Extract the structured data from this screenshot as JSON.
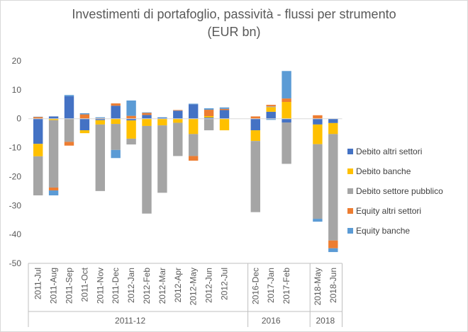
{
  "chart_data": {
    "type": "bar",
    "stacked": true,
    "title": "Investimenti di portafoglio, passività - flussi per strumento",
    "subtitle": "(EUR bn)",
    "xlabel": "",
    "ylabel": "",
    "ylim": [
      -50,
      20
    ],
    "yticks": [
      20,
      10,
      0,
      -10,
      -20,
      -30,
      -40,
      -50
    ],
    "grid": false,
    "legend_position": "right",
    "categories": [
      "2011-Jul",
      "2011-Aug",
      "2011-Sep",
      "2011-Oct",
      "2011-Nov",
      "2011-Dec",
      "2012-Jan",
      "2012-Feb",
      "2012-Mar",
      "2012-Apr",
      "2012-May",
      "2012-Jun",
      "2012-Jul",
      "",
      "2016-Dec",
      "2017-Jan",
      "2017-Feb",
      "",
      "2018-May",
      "2018-Jun"
    ],
    "groups": [
      {
        "label": "2011-12",
        "start": 0,
        "end": 12
      },
      {
        "label": "2016",
        "start": 14,
        "end": 16
      },
      {
        "label": "2018",
        "start": 18,
        "end": 19
      }
    ],
    "series": [
      {
        "name": "Debito altri settori",
        "color": "#4472C4",
        "values": [
          -8.7,
          0.8,
          7.8,
          -4.0,
          -0.5,
          4.5,
          -0.6,
          1.3,
          0.3,
          2.8,
          5.0,
          0.4,
          3.0,
          0,
          -4.0,
          2.4,
          -1.3,
          0,
          -2.0,
          -1.5
        ]
      },
      {
        "name": "Debito banche",
        "color": "#FFC000",
        "values": [
          -4.3,
          -0.5,
          -0.1,
          -1.0,
          -1.5,
          -1.8,
          -6.3,
          -2.5,
          -2.3,
          -1.4,
          -5.3,
          0.5,
          -4.0,
          0,
          -3.7,
          1.6,
          5.8,
          0,
          -6.8,
          -3.8
        ]
      },
      {
        "name": "Debito settore pubblico",
        "color": "#A5A5A5",
        "values": [
          -13.5,
          -23.3,
          -7.9,
          0,
          -23.0,
          -9.0,
          -2.0,
          -30.3,
          -23.3,
          -11.5,
          -7.6,
          -4.0,
          0,
          0,
          -24.6,
          0.3,
          -14.3,
          0,
          -25.8,
          -36.8
        ]
      },
      {
        "name": "Equity altri settori",
        "color": "#ED7D31",
        "values": [
          0.6,
          -1.0,
          -1.3,
          1.5,
          0.2,
          0.8,
          1.0,
          0.7,
          0,
          0.2,
          -1.6,
          2.2,
          0.4,
          0,
          0.8,
          0.5,
          1.2,
          0,
          1.2,
          -2.7
        ]
      },
      {
        "name": "Equity banche",
        "color": "#5B9BD5",
        "values": [
          0.1,
          -1.7,
          0.4,
          0.4,
          0.3,
          -2.8,
          5.3,
          0.2,
          0.2,
          0,
          0.2,
          0.5,
          0.5,
          0,
          0,
          -0.4,
          9.5,
          0,
          -1.0,
          -1.3
        ]
      }
    ]
  }
}
